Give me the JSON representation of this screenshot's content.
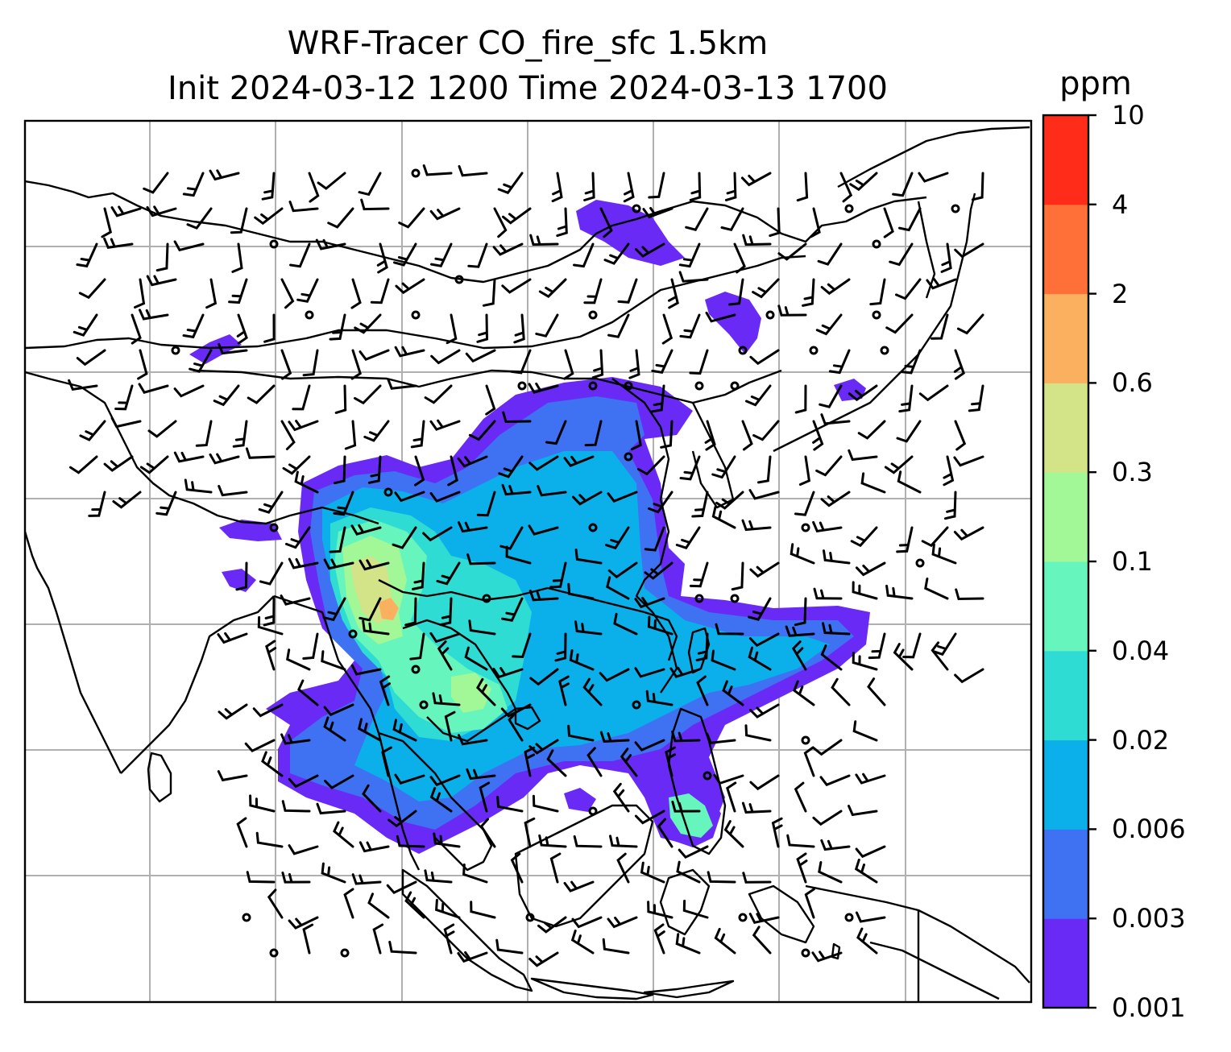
{
  "title_line1": "WRF-Tracer CO_fire_sfc 1.5km",
  "title_line2": "Init 2024-03-12 1200 Time 2024-03-13 1700",
  "colorbar": {
    "units": "ppm",
    "ticks": [
      "0.001",
      "0.003",
      "0.006",
      "0.02",
      "0.04",
      "0.1",
      "0.3",
      "0.6",
      "2",
      "4",
      "10"
    ],
    "colors": [
      "#6a2af6",
      "#3f71f3",
      "#0bb0ea",
      "#2fdcd3",
      "#66f5bd",
      "#a2f797",
      "#d2e388",
      "#fbb05f",
      "#ff7038",
      "#ff2c1a"
    ]
  },
  "layers": {
    "gridlines": "#b0b0b0",
    "coastline": "#000000",
    "wind_barbs": "#000000"
  }
}
